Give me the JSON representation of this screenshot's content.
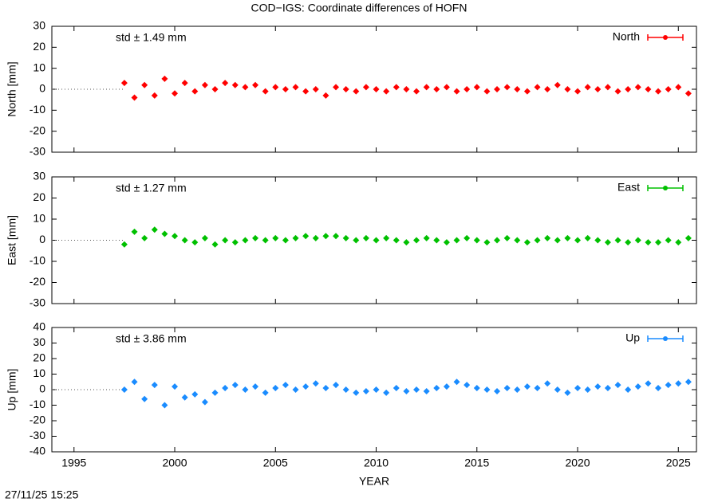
{
  "title": "COD−IGS: Coordinate differences of HOFN",
  "timestamp": "27/11/25 15:25",
  "chart_data": [
    {
      "type": "scatter",
      "ylabel": "North [mm]",
      "annotation": "std ± 1.49 mm",
      "legend": "upper right",
      "x": [
        1997.5,
        1998,
        1998.5,
        1999,
        1999.5,
        2000,
        2000.5,
        2001,
        2001.5,
        2002,
        2002.5,
        2003,
        2003.5,
        2004,
        2004.5,
        2005,
        2005.5,
        2006,
        2006.5,
        2007,
        2007.5,
        2008,
        2008.5,
        2009,
        2009.5,
        2010,
        2010.5,
        2011,
        2011.5,
        2012,
        2012.5,
        2013,
        2013.5,
        2014,
        2014.5,
        2015,
        2015.5,
        2016,
        2016.5,
        2017,
        2017.5,
        2018,
        2018.5,
        2019,
        2019.5,
        2020,
        2020.5,
        2021,
        2021.5,
        2022,
        2022.5,
        2023,
        2023.5,
        2024,
        2024.5,
        2025,
        2025.5
      ],
      "series": [
        {
          "name": "North",
          "color": "#ff0000",
          "values": [
            3,
            -4,
            2,
            -3,
            5,
            -2,
            3,
            -1,
            2,
            0,
            3,
            2,
            1,
            2,
            -1,
            1,
            0,
            1,
            -1,
            0,
            -3,
            1,
            0,
            -1,
            1,
            0,
            -1,
            1,
            0,
            -1,
            1,
            0,
            1,
            -1,
            0,
            1,
            -1,
            0,
            1,
            0,
            -1,
            1,
            0,
            2,
            0,
            -1,
            1,
            0,
            1,
            -1,
            0,
            1,
            0,
            -1,
            0,
            1,
            -2
          ]
        }
      ],
      "xlim": [
        1993.9,
        2025.9
      ],
      "ylim": [
        -30,
        30
      ],
      "yticks": [
        -30,
        -20,
        -10,
        0,
        10,
        20,
        30
      ]
    },
    {
      "type": "scatter",
      "ylabel": "East [mm]",
      "annotation": "std ± 1.27 mm",
      "legend": "upper right",
      "x": [
        1997.5,
        1998,
        1998.5,
        1999,
        1999.5,
        2000,
        2000.5,
        2001,
        2001.5,
        2002,
        2002.5,
        2003,
        2003.5,
        2004,
        2004.5,
        2005,
        2005.5,
        2006,
        2006.5,
        2007,
        2007.5,
        2008,
        2008.5,
        2009,
        2009.5,
        2010,
        2010.5,
        2011,
        2011.5,
        2012,
        2012.5,
        2013,
        2013.5,
        2014,
        2014.5,
        2015,
        2015.5,
        2016,
        2016.5,
        2017,
        2017.5,
        2018,
        2018.5,
        2019,
        2019.5,
        2020,
        2020.5,
        2021,
        2021.5,
        2022,
        2022.5,
        2023,
        2023.5,
        2024,
        2024.5,
        2025,
        2025.5
      ],
      "series": [
        {
          "name": "East",
          "color": "#00c000",
          "values": [
            -2,
            4,
            1,
            5,
            3,
            2,
            0,
            -1,
            1,
            -2,
            0,
            -1,
            0,
            1,
            0,
            1,
            0,
            1,
            2,
            1,
            2,
            2,
            1,
            0,
            1,
            0,
            1,
            0,
            -1,
            0,
            1,
            0,
            -1,
            0,
            1,
            0,
            -1,
            0,
            1,
            0,
            -1,
            0,
            1,
            0,
            1,
            0,
            1,
            0,
            -1,
            0,
            -1,
            0,
            -1,
            -1,
            0,
            -1,
            1
          ]
        }
      ],
      "xlim": [
        1993.9,
        2025.9
      ],
      "ylim": [
        -30,
        30
      ],
      "yticks": [
        -30,
        -20,
        -10,
        0,
        10,
        20,
        30
      ]
    },
    {
      "type": "scatter",
      "ylabel": "Up [mm]",
      "annotation": "std ± 3.86 mm",
      "legend": "upper right",
      "xlabel": "YEAR",
      "x": [
        1997.5,
        1998,
        1998.5,
        1999,
        1999.5,
        2000,
        2000.5,
        2001,
        2001.5,
        2002,
        2002.5,
        2003,
        2003.5,
        2004,
        2004.5,
        2005,
        2005.5,
        2006,
        2006.5,
        2007,
        2007.5,
        2008,
        2008.5,
        2009,
        2009.5,
        2010,
        2010.5,
        2011,
        2011.5,
        2012,
        2012.5,
        2013,
        2013.5,
        2014,
        2014.5,
        2015,
        2015.5,
        2016,
        2016.5,
        2017,
        2017.5,
        2018,
        2018.5,
        2019,
        2019.5,
        2020,
        2020.5,
        2021,
        2021.5,
        2022,
        2022.5,
        2023,
        2023.5,
        2024,
        2024.5,
        2025,
        2025.5
      ],
      "series": [
        {
          "name": "Up",
          "color": "#1a8cff",
          "values": [
            0,
            5,
            -6,
            3,
            -10,
            2,
            -5,
            -3,
            -8,
            -2,
            1,
            3,
            0,
            2,
            -2,
            1,
            3,
            0,
            2,
            4,
            1,
            3,
            0,
            -2,
            -1,
            0,
            -2,
            1,
            -1,
            0,
            -1,
            1,
            2,
            5,
            3,
            1,
            0,
            -1,
            1,
            0,
            2,
            1,
            4,
            0,
            -2,
            1,
            0,
            2,
            1,
            3,
            0,
            2,
            4,
            1,
            3,
            4,
            5
          ]
        }
      ],
      "xlim": [
        1993.9,
        2025.9
      ],
      "ylim": [
        -40,
        40
      ],
      "yticks": [
        -40,
        -30,
        -20,
        -10,
        0,
        10,
        20,
        30,
        40
      ],
      "xticks": [
        1995,
        2000,
        2005,
        2010,
        2015,
        2020,
        2025
      ]
    }
  ]
}
